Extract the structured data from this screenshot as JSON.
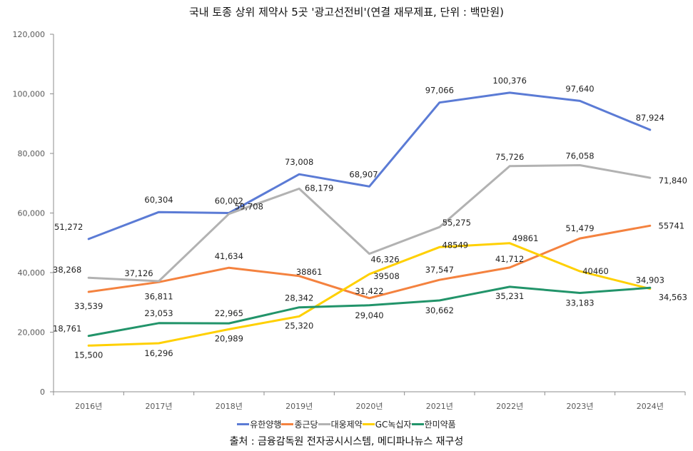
{
  "chart_data": {
    "type": "line",
    "title": "국내 토종 상위 제약사 5곳 '광고선전비'(연결 재무제표, 단위 : 백만원)",
    "xlabel": "",
    "ylabel": "",
    "categories": [
      "2016년",
      "2017년",
      "2018년",
      "2019년",
      "2020년",
      "2021년",
      "2022년",
      "2023년",
      "2024년"
    ],
    "ylim": [
      0,
      120000
    ],
    "yticks": [
      0,
      20000,
      40000,
      60000,
      80000,
      100000,
      120000
    ],
    "ytick_labels": [
      "0",
      "20,000",
      "40,000",
      "60,000",
      "80,000",
      "100,000",
      "120,000"
    ],
    "grid": false,
    "legend_position": "bottom",
    "series": [
      {
        "name": "유한양행",
        "color": "#5B7BD5",
        "values": [
          51272,
          60304,
          60002,
          73008,
          68907,
          97066,
          100376,
          97640,
          87924
        ],
        "labels": [
          "51,272",
          "60,304",
          "60,002",
          "73,008",
          "68,907",
          "97,066",
          "100,376",
          "97,640",
          "87,924"
        ]
      },
      {
        "name": "종근당",
        "color": "#F4823F",
        "values": [
          33539,
          36811,
          41634,
          38861,
          31422,
          37547,
          41712,
          51479,
          55741
        ],
        "labels": [
          "33,539",
          "36,811",
          "41,634",
          "38861",
          "31,422",
          "37,547",
          "41,712",
          "51,479",
          "55741"
        ]
      },
      {
        "name": "대웅제약",
        "color": "#B2B2B2",
        "values": [
          38268,
          37126,
          59708,
          68179,
          46326,
          55275,
          75726,
          76058,
          71840
        ],
        "labels": [
          "38,268",
          "37,126",
          "59,708",
          "68,179",
          "46,326",
          "55,275",
          "75,726",
          "76,058",
          "71,840"
        ]
      },
      {
        "name": "GC녹십자",
        "color": "#FFD000",
        "values": [
          15500,
          16296,
          20989,
          25320,
          39508,
          48549,
          49861,
          40460,
          34563
        ],
        "labels": [
          "15,500",
          "16,296",
          "20,989",
          "25,320",
          "39508",
          "48549",
          "49861",
          "40460",
          "34,563"
        ]
      },
      {
        "name": "한미약품",
        "color": "#22946A",
        "values": [
          18761,
          23053,
          22965,
          28342,
          29040,
          30662,
          35231,
          33183,
          34903
        ],
        "labels": [
          "18,761",
          "23,053",
          "22,965",
          "28,342",
          "29,040",
          "30,662",
          "35,231",
          "33,183",
          "34,903"
        ]
      }
    ],
    "annotations": [
      "출처 : 금융감독원 전자공시시스템, 메디파나뉴스 재구성"
    ]
  },
  "source_note": "출처 : 금융감독원 전자공시시스템, 메디파나뉴스 재구성"
}
